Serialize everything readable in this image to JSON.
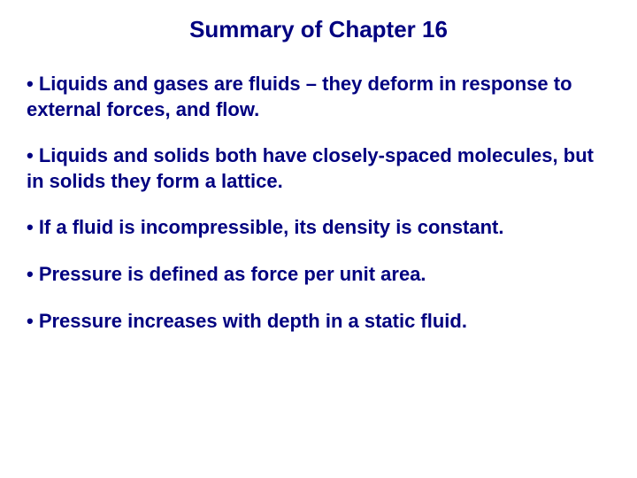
{
  "title": {
    "text": "Summary of Chapter 16",
    "color": "#000080",
    "fontsize": 26
  },
  "bullets": [
    {
      "text": "• Liquids and gases are fluids – they deform in response to external forces, and flow.",
      "color": "#000080",
      "fontsize": 22
    },
    {
      "text": "• Liquids and solids both have closely-spaced molecules, but in solids they form a lattice.",
      "color": "#000080",
      "fontsize": 22
    },
    {
      "text": "• If a fluid is incompressible, its density is constant.",
      "color": "#000080",
      "fontsize": 22
    },
    {
      "text": "• Pressure is defined as force per unit area.",
      "color": "#000080",
      "fontsize": 22
    },
    {
      "text": "• Pressure increases with depth in a static fluid.",
      "color": "#000080",
      "fontsize": 22
    }
  ],
  "background_color": "#ffffff"
}
